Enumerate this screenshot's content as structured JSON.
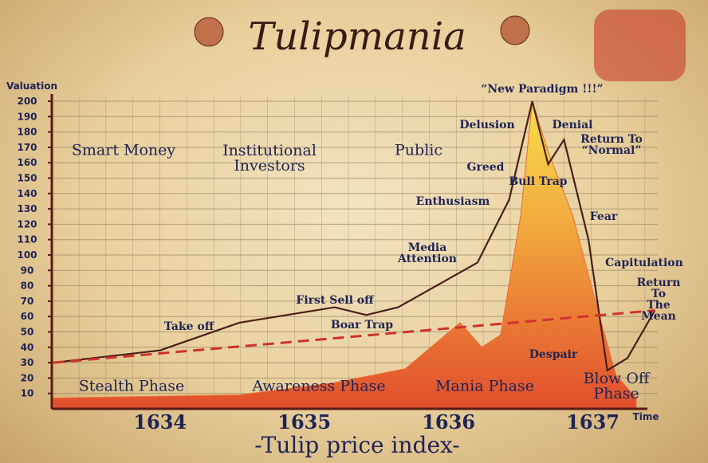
{
  "chart_data": {
    "type": "line",
    "title": "Tulipmania",
    "subtitle": "-Tulip price index-",
    "y_label": "Valuation",
    "x_label": "Time",
    "xlim": [
      1633.25,
      1637.45
    ],
    "xticks": [
      1634,
      1635,
      1636,
      1637
    ],
    "ylim": [
      0,
      200
    ],
    "yticks": [
      10,
      20,
      30,
      40,
      50,
      60,
      70,
      80,
      90,
      100,
      110,
      120,
      130,
      140,
      150,
      160,
      170,
      180,
      190,
      200
    ],
    "grid": true,
    "series": [
      {
        "type": "line",
        "color": "#4a1f1a",
        "x": [
          1633.26,
          1634.0,
          1634.55,
          1635.21,
          1635.43,
          1635.65,
          1636.2,
          1636.42,
          1636.58,
          1636.69,
          1636.8,
          1636.97,
          1637.1,
          1637.24,
          1637.43
        ],
        "values": [
          30,
          38,
          56,
          66,
          61,
          66,
          95,
          136,
          200,
          159,
          175,
          110,
          25,
          33,
          64
        ]
      },
      {
        "type": "area",
        "color": "#ec6a35",
        "x": [
          1633.26,
          1634.55,
          1635.21,
          1635.7,
          1636.08,
          1636.23,
          1636.36,
          1636.5,
          1636.58,
          1636.69,
          1636.86,
          1637.02,
          1637.16,
          1637.3
        ],
        "values": [
          7,
          9,
          17,
          26,
          56,
          40,
          48,
          126,
          200,
          167,
          126,
          69,
          22,
          7
        ]
      },
      {
        "type": "line",
        "dashed": true,
        "color": "#d0312d",
        "x": [
          1633.26,
          1637.43
        ],
        "values": [
          30,
          64
        ]
      }
    ],
    "annotations": [
      "“New Paradigm !!!”",
      "Delusion",
      "Denial",
      "Return To\n“Normal”",
      "Greed",
      "Bull Trap",
      "Enthusiasm",
      "Fear",
      "Media\nAttention",
      "Capitulation",
      "First Sell off",
      "Return To\nThe Mean",
      "Take off",
      "Boar Trap",
      "Despair",
      "Smart Money",
      "Institutional\nInvestors",
      "Public"
    ],
    "phases": [
      "Stealth Phase",
      "Awareness Phase",
      "Mania Phase",
      "Blow Off Phase"
    ]
  }
}
